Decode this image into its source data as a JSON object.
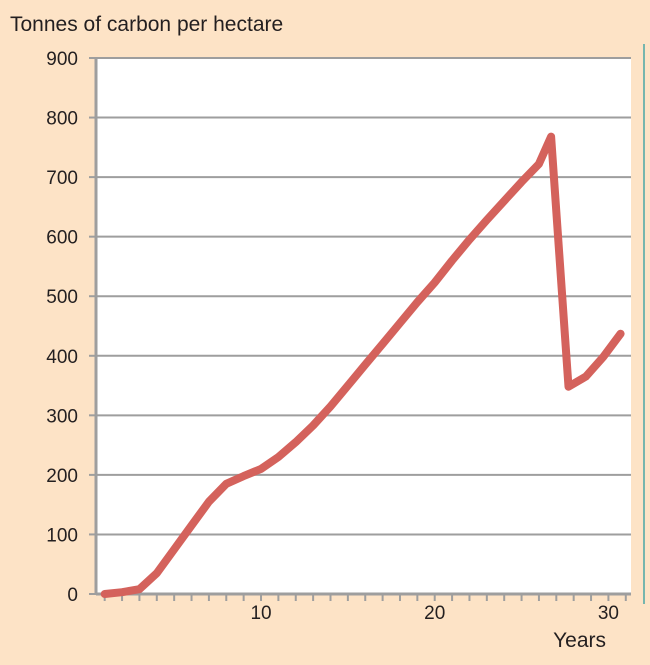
{
  "chart_data": {
    "type": "line",
    "title": "",
    "ylabel": "Tonnes of carbon per hectare",
    "xlabel": "Years",
    "xlim": [
      0.5,
      31.3
    ],
    "ylim": [
      0,
      900
    ],
    "x_ticks": [
      10,
      20,
      30
    ],
    "y_ticks": [
      0,
      100,
      200,
      300,
      400,
      500,
      600,
      700,
      800,
      900
    ],
    "grid": true,
    "legend": "none",
    "series": [
      {
        "x": [
          1,
          2,
          3,
          4,
          5,
          6,
          7,
          8,
          9,
          10,
          11,
          12,
          13,
          14,
          15,
          16,
          17,
          18,
          19,
          20,
          21,
          22,
          23,
          24,
          25,
          26,
          26.7,
          27.7,
          28.7,
          29.7,
          30.7
        ],
        "y": [
          0,
          3,
          8,
          35,
          75,
          115,
          155,
          185,
          198,
          210,
          230,
          255,
          283,
          315,
          350,
          385,
          420,
          455,
          490,
          523,
          560,
          595,
          628,
          660,
          692,
          722,
          768,
          348,
          365,
          398,
          437
        ],
        "color": "#d4625c"
      }
    ]
  },
  "style": {
    "background": "#fde3c6",
    "plot_background": "#ffffff",
    "grid_color": "#9e9e9e",
    "axis_color": "#9e9e9e",
    "line_color": "#d4625c",
    "right_rule_color": "#4aa8a6"
  }
}
